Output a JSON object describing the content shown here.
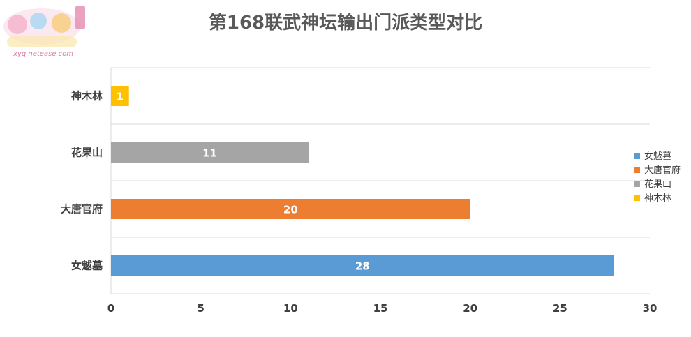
{
  "chart_data": {
    "type": "bar",
    "orientation": "horizontal",
    "title": "第168联武神坛输出门派类型对比",
    "categories": [
      "神木林",
      "花果山",
      "大唐官府",
      "女魃墓"
    ],
    "values": [
      1,
      11,
      20,
      28
    ],
    "colors": [
      "#FFC000",
      "#A5A5A5",
      "#ED7D31",
      "#5B9BD5"
    ],
    "xlim": [
      0,
      30
    ],
    "xticks": [
      0,
      5,
      10,
      15,
      20,
      25,
      30
    ],
    "grid": true,
    "legend_position": "right",
    "legend": [
      {
        "label": "女魃墓",
        "color": "#5B9BD5"
      },
      {
        "label": "大唐官府",
        "color": "#ED7D31"
      },
      {
        "label": "花果山",
        "color": "#A5A5A5"
      },
      {
        "label": "神木林",
        "color": "#FFC000"
      }
    ],
    "data_labels": true
  },
  "watermark": {
    "text": "xyq.netease.com"
  }
}
